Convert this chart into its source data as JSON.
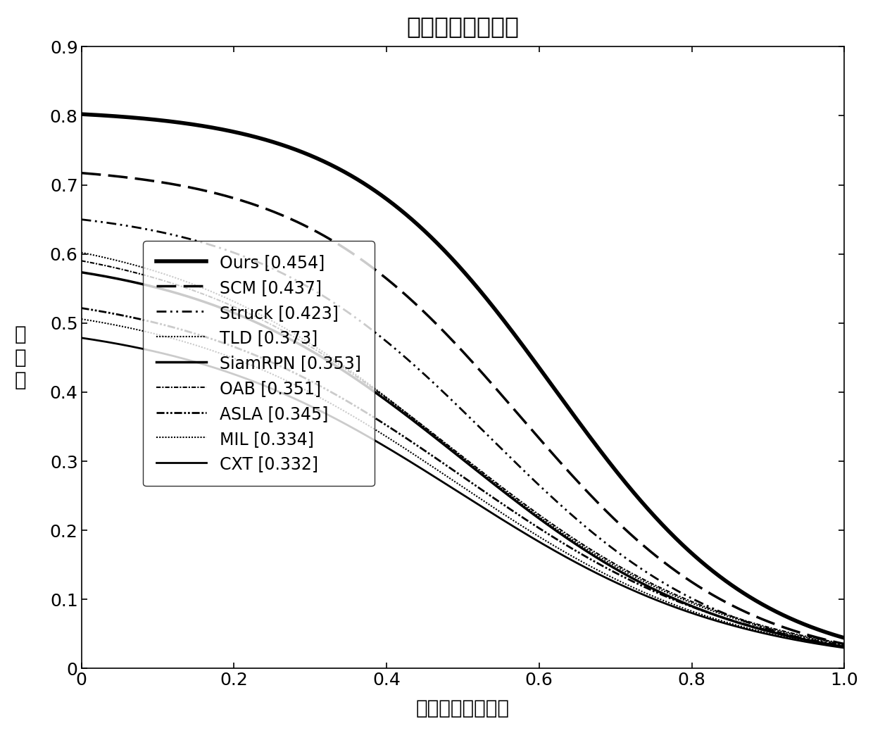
{
  "title": "成功率曲线对比图",
  "xlabel": "边界框重叠率阈值",
  "ylabel": "成\n功\n率",
  "xlim": [
    0,
    1
  ],
  "ylim": [
    0,
    0.9
  ],
  "yticks": [
    0,
    0.1,
    0.2,
    0.3,
    0.4,
    0.5,
    0.6,
    0.7,
    0.8,
    0.9
  ],
  "xticks": [
    0,
    0.2,
    0.4,
    0.6,
    0.8,
    1.0
  ],
  "background_color": "#ffffff",
  "line_color": "#000000",
  "title_fontsize": 24,
  "label_fontsize": 20,
  "tick_fontsize": 18,
  "legend_fontsize": 17
}
